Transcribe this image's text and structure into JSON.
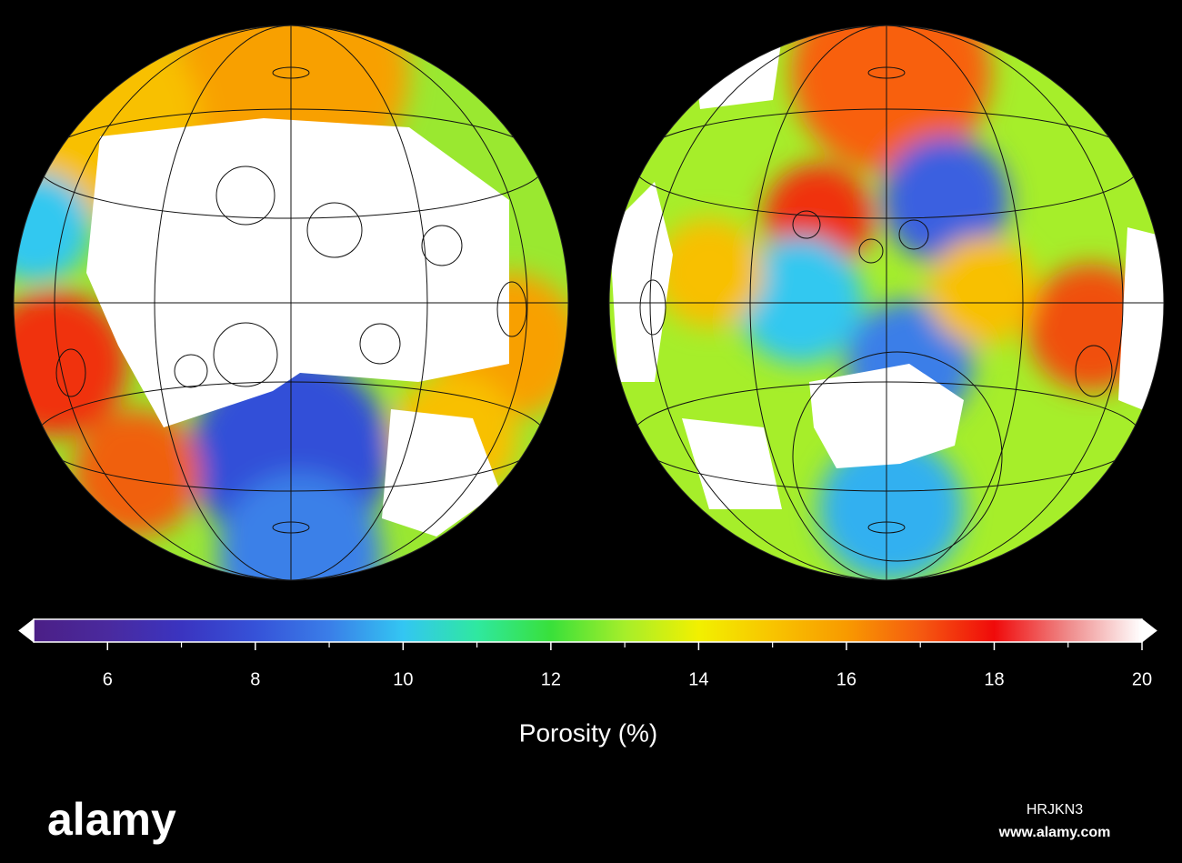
{
  "colorbar": {
    "label": "Porosity (%)",
    "lim": [
      5,
      20
    ],
    "ticks": [
      6,
      8,
      10,
      12,
      14,
      16,
      18,
      20
    ],
    "minor_ticks": [
      7,
      9,
      11,
      13,
      15,
      17,
      19
    ],
    "colors": [
      "#4b1f86",
      "#4a2a9e",
      "#3a34c0",
      "#3652d8",
      "#3a7ee8",
      "#33c6f2",
      "#2fe8a0",
      "#39e03a",
      "#a6ee2a",
      "#f2f000",
      "#f8c400",
      "#f89a00",
      "#f55a10",
      "#f00a0a",
      "#ef8a8a",
      "#ffffff"
    ]
  },
  "watermark": {
    "brand": "alamy",
    "code": "HRJKN3",
    "url": "www.alamy.com"
  }
}
